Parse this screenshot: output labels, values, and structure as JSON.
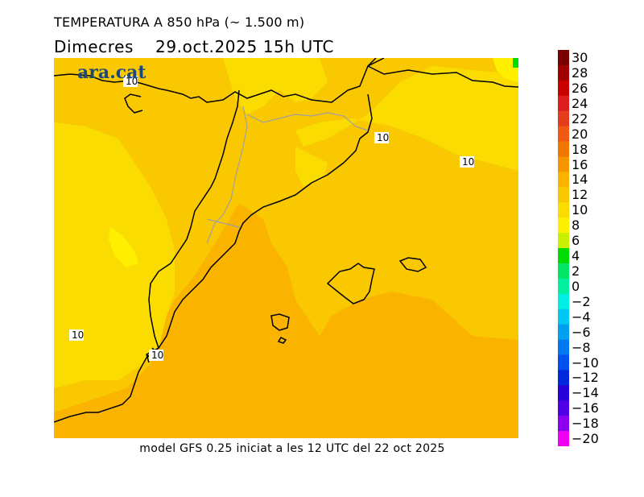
{
  "header": {
    "title": "TEMPERATURA A 850 hPa (~ 1.500 m)",
    "weekday": "Dimecres",
    "datetime": "29.oct.2025 15h UTC"
  },
  "logo": {
    "text": "ara.cat",
    "color": "#1b4a7a"
  },
  "footer": {
    "text": "model GFS 0.25 iniciat a les 12 UTC del 22 oct 2025"
  },
  "map": {
    "colors": {
      "light_yellow": "#fadc00",
      "yellow": "#fac800",
      "orange": "#fab400",
      "bright_yellow": "#fff000",
      "border": "#000000",
      "internal_border": "#a0a0a0"
    },
    "isoline_labels": [
      {
        "id": "iso-nw",
        "text": "10"
      },
      {
        "id": "iso-ne",
        "text": "10"
      },
      {
        "id": "iso-east",
        "text": "10"
      },
      {
        "id": "iso-sw",
        "text": "10"
      },
      {
        "id": "iso-valencia",
        "text": "10"
      }
    ]
  },
  "legend": {
    "labels": [
      "30",
      "28",
      "26",
      "24",
      "22",
      "20",
      "18",
      "16",
      "14",
      "12",
      "10",
      "8",
      "6",
      "4",
      "2",
      "0",
      "−2",
      "−4",
      "−6",
      "−8",
      "−10",
      "−12",
      "−14",
      "−16",
      "−18",
      "−20"
    ],
    "swatches": [
      "#780000",
      "#a00000",
      "#c80000",
      "#dc1e1e",
      "#e63c1e",
      "#f05a14",
      "#f07800",
      "#f59600",
      "#fab400",
      "#fac800",
      "#fadc00",
      "#fff000",
      "#c8f000",
      "#00dc00",
      "#00e664",
      "#00f0a0",
      "#00f0e6",
      "#00c8f0",
      "#00a0f0",
      "#0078f0",
      "#0050f0",
      "#0028dc",
      "#2800dc",
      "#5000e6",
      "#8c00f0",
      "#f000f0"
    ]
  }
}
